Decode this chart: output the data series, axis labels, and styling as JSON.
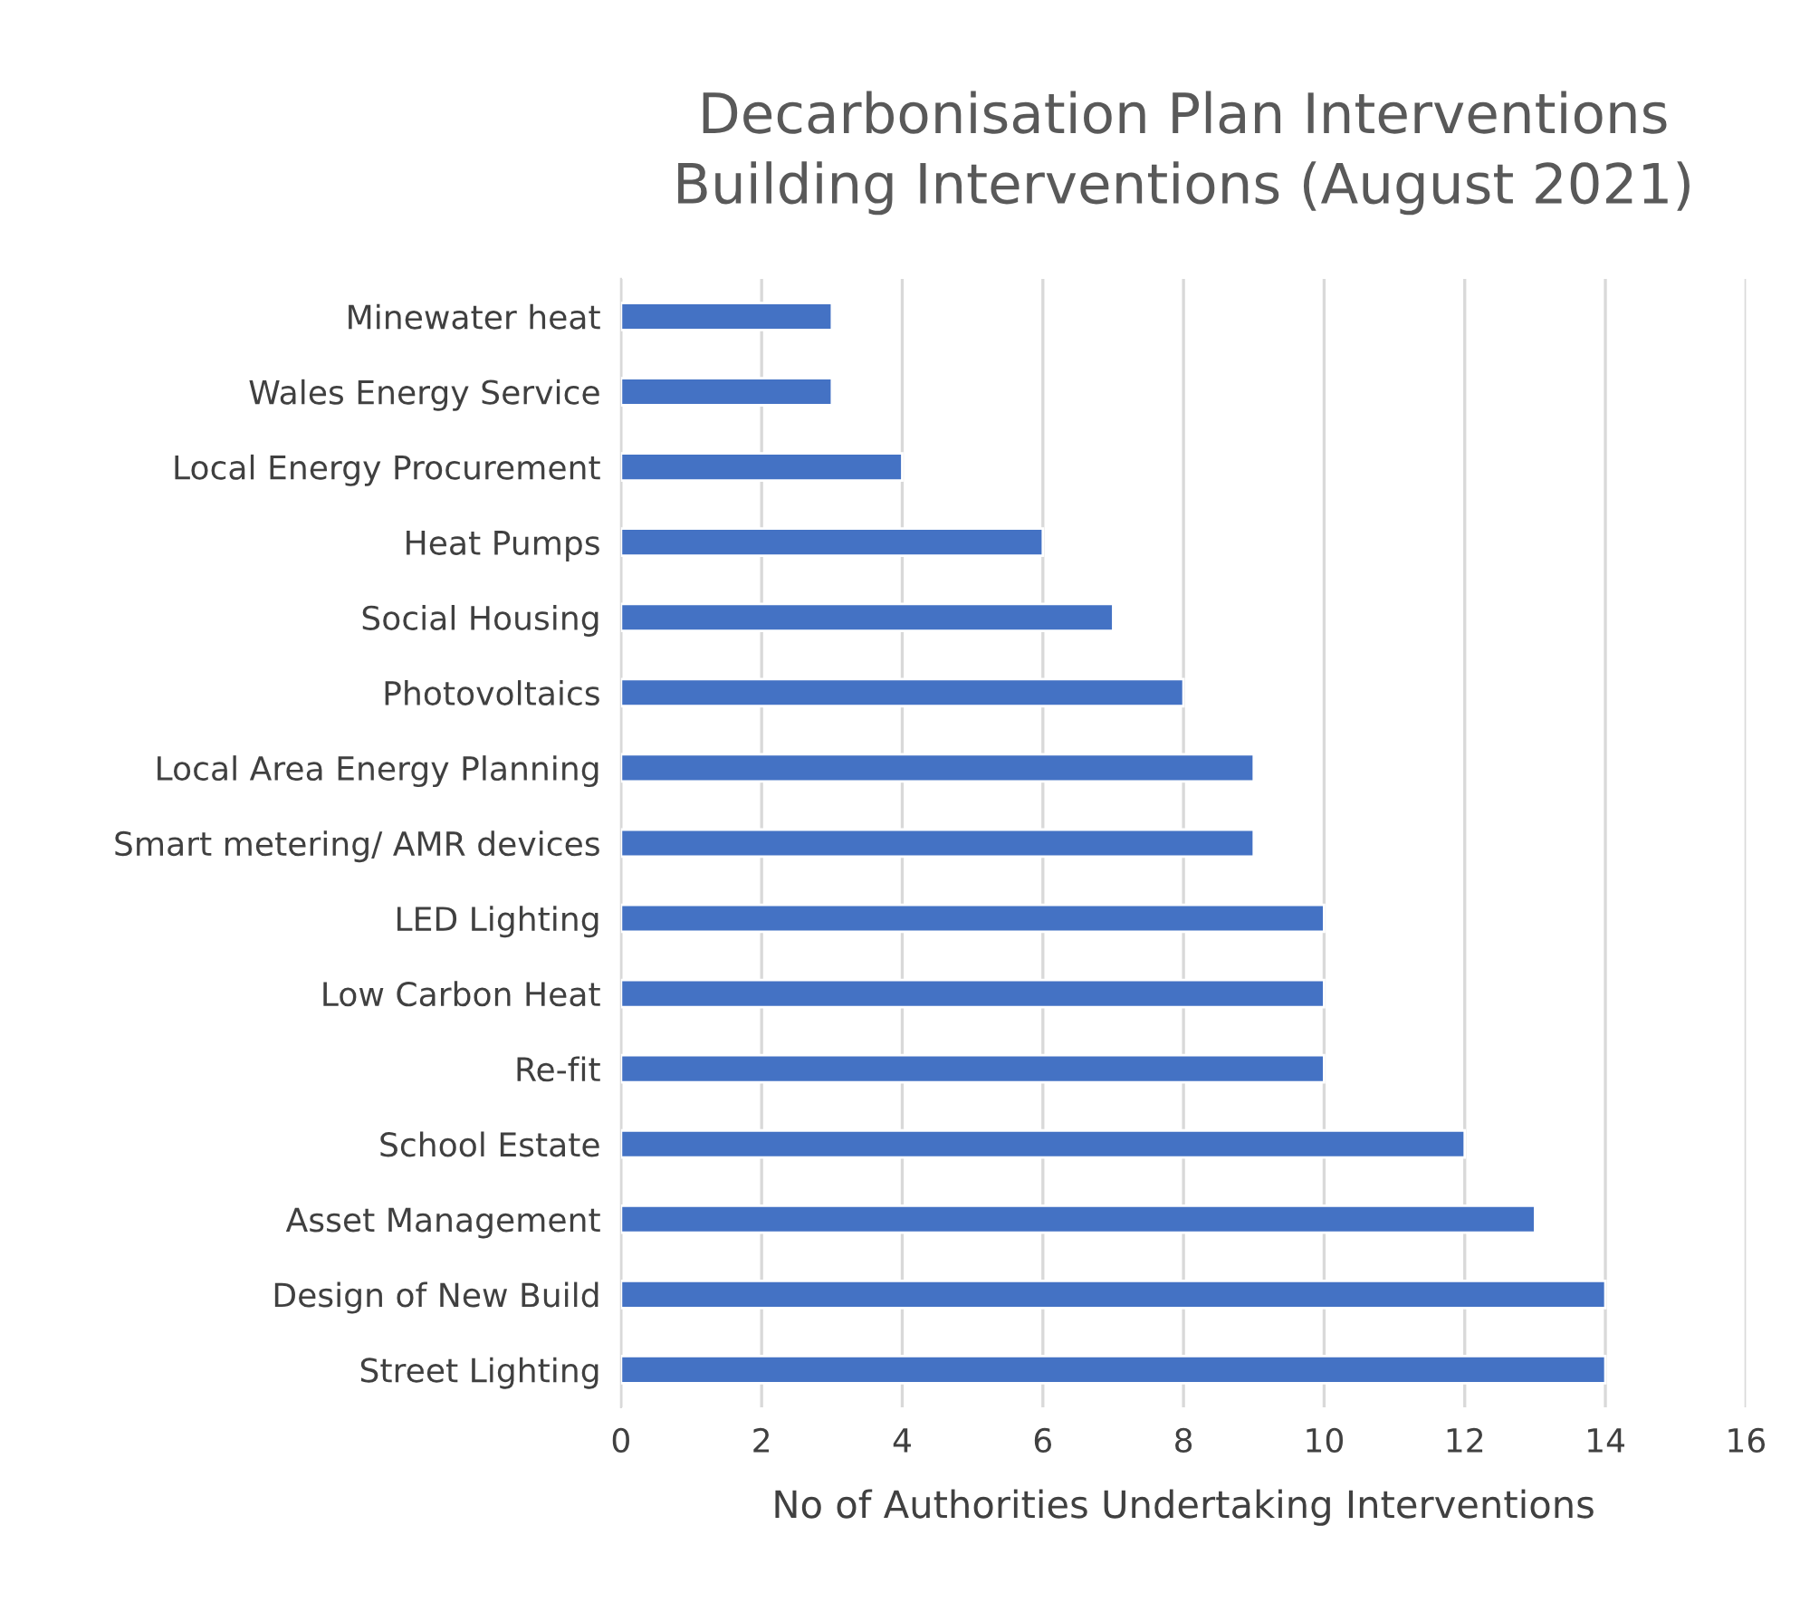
{
  "chart_data": {
    "type": "bar",
    "orientation": "horizontal",
    "title": "Decarbonisation Plan Interventions\nBuilding Interventions (August 2021)",
    "xlabel": "No of Authorities Undertaking Interventions",
    "categories": [
      "Minewater heat",
      "Wales Energy Service",
      "Local Energy Procurement",
      "Heat Pumps",
      "Social Housing",
      "Photovoltaics",
      "Local Area Energy Planning",
      "Smart metering/ AMR devices",
      "LED Lighting",
      "Low Carbon Heat",
      "Re-fit",
      "School Estate",
      "Asset Management",
      "Design of New Build",
      "Street Lighting"
    ],
    "values": [
      3,
      3,
      4,
      6,
      7,
      8,
      9,
      9,
      10,
      10,
      10,
      12,
      13,
      14,
      14
    ],
    "color": "#4472c4",
    "xlim": [
      0,
      16
    ],
    "xticks": [
      0,
      2,
      4,
      6,
      8,
      10,
      12,
      14,
      16
    ],
    "grid": "x",
    "legend": false
  }
}
